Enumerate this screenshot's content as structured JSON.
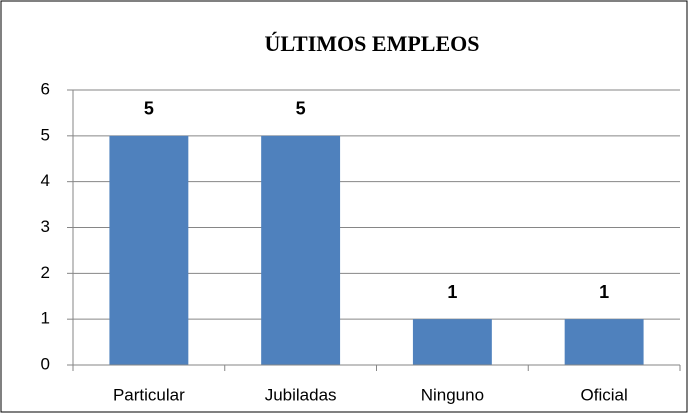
{
  "chart_data": {
    "type": "bar",
    "title": "ÚLTIMOS EMPLEOS",
    "categories": [
      "Particular",
      "Jubiladas",
      "Ninguno",
      "Oficial"
    ],
    "values": [
      5,
      5,
      1,
      1
    ],
    "color": "#4f81bd",
    "ylim": [
      0,
      6
    ],
    "yticks": [
      0,
      1,
      2,
      3,
      4,
      5,
      6
    ],
    "grid": true,
    "data_labels": true
  }
}
